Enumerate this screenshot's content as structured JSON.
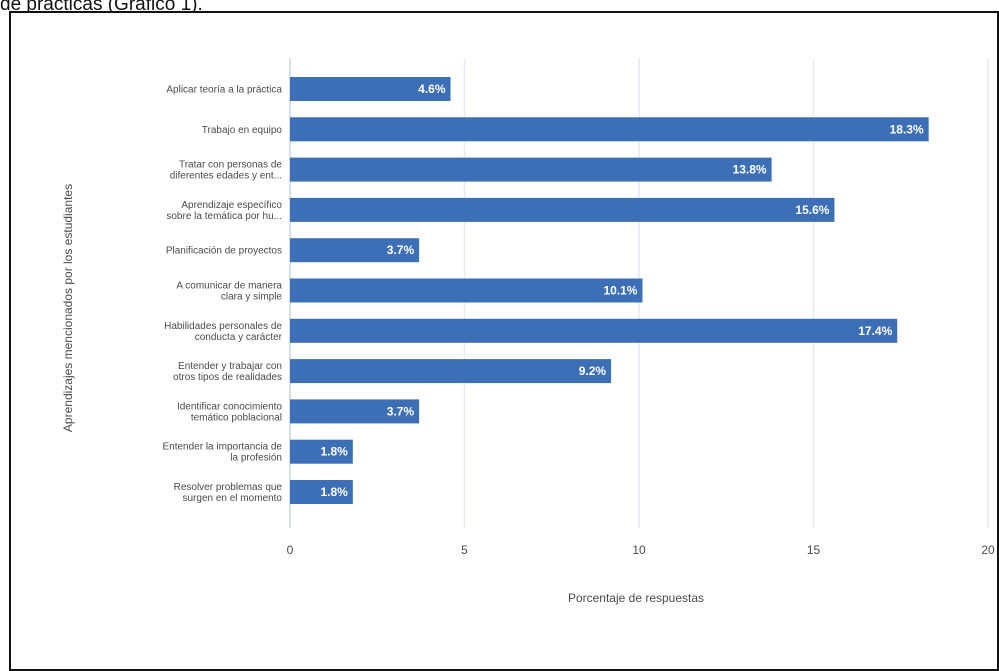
{
  "caption": "de prácticas (Gráfico 1).",
  "chart_data": {
    "type": "bar",
    "orientation": "horizontal",
    "categories": [
      [
        "Aplicar teoría a la práctica"
      ],
      [
        "Trabajo en equipo"
      ],
      [
        "Tratar con personas de",
        "diferentes edades y ent..."
      ],
      [
        "Aprendizaje específico",
        "sobre la temática por hu..."
      ],
      [
        "Planificación de proyectos"
      ],
      [
        "A comunicar de manera",
        "clara y simple"
      ],
      [
        "Habilidades personales de",
        "conducta y carácter"
      ],
      [
        "Entender y trabajar con",
        "otros tipos de realidades"
      ],
      [
        "Identificar conocimiento",
        "temático poblacional"
      ],
      [
        "Entender la importancia de",
        "la profesión"
      ],
      [
        "Resolver problemas que",
        "surgen en el momento"
      ]
    ],
    "values": [
      4.6,
      18.3,
      13.8,
      15.6,
      3.7,
      10.1,
      17.4,
      9.2,
      3.7,
      1.8,
      1.8
    ],
    "value_labels": [
      "4.6%",
      "18.3%",
      "13.8%",
      "15.6%",
      "3.7%",
      "10.1%",
      "17.4%",
      "9.2%",
      "3.7%",
      "1.8%",
      "1.8%"
    ],
    "xticks": [
      "0",
      "5",
      "10",
      "15",
      "20"
    ],
    "xlim": [
      0,
      20
    ],
    "xlabel": "Porcentaje de respuestas",
    "ylabel": "Aprendizajes mencionados por los estudiantes",
    "grid": true,
    "bar_color": "#3d6fb6",
    "grid_color": "#e4ecf5"
  }
}
